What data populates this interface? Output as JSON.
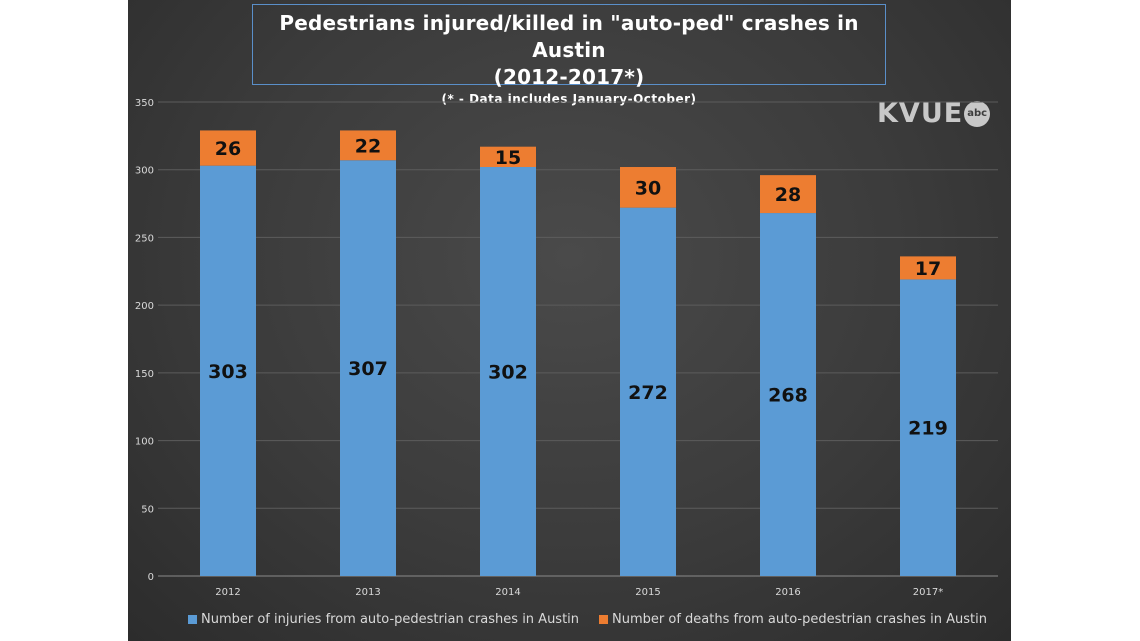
{
  "chart_data": {
    "type": "bar",
    "stacked": true,
    "title": "Pedestrians injured/killed in \"auto-ped\" crashes in Austin",
    "title_line2": "(2012-2017*)",
    "subtitle": "(* - Data includes January-October)",
    "categories": [
      "2012",
      "2013",
      "2014",
      "2015",
      "2016",
      "2017*"
    ],
    "series": [
      {
        "name": "Number of injuries from auto-pedestrian crashes in Austin",
        "color": "#5b9bd5",
        "values": [
          303,
          307,
          302,
          272,
          268,
          219
        ]
      },
      {
        "name": "Number of deaths from auto-pedestrian crashes in Austin",
        "color": "#ed7d31",
        "values": [
          26,
          22,
          15,
          30,
          28,
          17
        ]
      }
    ],
    "ylim": [
      0,
      350
    ],
    "yticks": [
      0,
      50,
      100,
      150,
      200,
      250,
      300,
      350
    ],
    "grid": true,
    "legend_position": "bottom"
  },
  "watermark": {
    "text": "KVUE",
    "badge": "abc"
  }
}
